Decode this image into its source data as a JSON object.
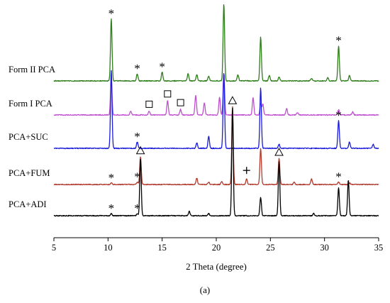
{
  "chart_data": {
    "type": "line",
    "title": "",
    "subfigure_label": "(a)",
    "xlabel": "2 Theta (degree)",
    "ylabel": "",
    "xlim": [
      5,
      35
    ],
    "xticks": [
      5,
      10,
      15,
      20,
      25,
      30,
      35
    ],
    "xtick_labels": [
      "5",
      "10",
      "15",
      "20",
      "25",
      "30",
      "35"
    ],
    "grid": false,
    "legend": "inline-left",
    "series": [
      {
        "name": "Form II PCA",
        "color": "#2e7d1a",
        "peaks": [
          [
            10.3,
            0.78
          ],
          [
            12.7,
            0.09
          ],
          [
            15.0,
            0.11
          ],
          [
            17.4,
            0.09
          ],
          [
            18.2,
            0.08
          ],
          [
            19.3,
            0.06
          ],
          [
            20.7,
            0.97
          ],
          [
            22.0,
            0.08
          ],
          [
            24.1,
            0.55
          ],
          [
            24.9,
            0.07
          ],
          [
            25.8,
            0.05
          ],
          [
            28.8,
            0.03
          ],
          [
            30.3,
            0.04
          ],
          [
            31.3,
            0.44
          ],
          [
            32.3,
            0.07
          ]
        ],
        "markers": [
          {
            "x": 10.3,
            "symbol": "*"
          },
          {
            "x": 12.7,
            "symbol": "*"
          },
          {
            "x": 15.0,
            "symbol": "*"
          },
          {
            "x": 31.3,
            "symbol": "*"
          }
        ]
      },
      {
        "name": "Form I PCA",
        "color": "#c04fd0",
        "peaks": [
          [
            10.3,
            0.45
          ],
          [
            12.1,
            0.05
          ],
          [
            13.8,
            0.05
          ],
          [
            15.5,
            0.18
          ],
          [
            16.7,
            0.07
          ],
          [
            18.1,
            0.25
          ],
          [
            18.9,
            0.15
          ],
          [
            20.3,
            0.22
          ],
          [
            20.7,
            0.52
          ],
          [
            23.4,
            0.22
          ],
          [
            24.1,
            0.15
          ],
          [
            24.3,
            0.14
          ],
          [
            26.5,
            0.08
          ],
          [
            27.5,
            0.03
          ],
          [
            31.3,
            0.07
          ],
          [
            32.6,
            0.04
          ]
        ],
        "markers": [
          {
            "x": 13.8,
            "symbol": "□"
          },
          {
            "x": 15.5,
            "symbol": "□"
          },
          {
            "x": 16.7,
            "symbol": "□"
          }
        ]
      },
      {
        "name": "PCA+SUC",
        "color": "#1a1adc",
        "peaks": [
          [
            10.3,
            0.98
          ],
          [
            12.7,
            0.08
          ],
          [
            18.2,
            0.07
          ],
          [
            19.3,
            0.15
          ],
          [
            20.7,
            0.96
          ],
          [
            24.1,
            0.76
          ],
          [
            25.8,
            0.05
          ],
          [
            31.3,
            0.35
          ],
          [
            32.3,
            0.08
          ],
          [
            34.5,
            0.05
          ]
        ],
        "markers": [
          {
            "x": 12.7,
            "symbol": "*"
          },
          {
            "x": 31.3,
            "symbol": "*"
          }
        ]
      },
      {
        "name": "PCA+FUM",
        "color": "#b03a2e",
        "peaks": [
          [
            10.3,
            0.02
          ],
          [
            12.7,
            0.03
          ],
          [
            13.0,
            0.35
          ],
          [
            18.2,
            0.08
          ],
          [
            19.3,
            0.03
          ],
          [
            20.5,
            0.04
          ],
          [
            21.5,
            0.98
          ],
          [
            22.8,
            0.07
          ],
          [
            24.1,
            0.45
          ],
          [
            25.8,
            0.33
          ],
          [
            27.2,
            0.03
          ],
          [
            28.8,
            0.07
          ],
          [
            31.3,
            0.03
          ],
          [
            32.3,
            0.02
          ]
        ],
        "markers": [
          {
            "x": 10.3,
            "symbol": "*"
          },
          {
            "x": 12.7,
            "symbol": "*"
          },
          {
            "x": 13.0,
            "symbol": "△"
          },
          {
            "x": 21.5,
            "symbol": "△"
          },
          {
            "x": 22.8,
            "symbol": "+"
          },
          {
            "x": 25.8,
            "symbol": "△"
          },
          {
            "x": 31.3,
            "symbol": "*"
          }
        ]
      },
      {
        "name": "PCA+ADI",
        "color": "#000000",
        "peaks": [
          [
            10.3,
            0.02
          ],
          [
            12.7,
            0.02
          ],
          [
            13.0,
            0.53
          ],
          [
            17.5,
            0.04
          ],
          [
            19.3,
            0.02
          ],
          [
            21.5,
            1.0
          ],
          [
            24.1,
            0.17
          ],
          [
            25.8,
            0.5
          ],
          [
            29.0,
            0.02
          ],
          [
            31.3,
            0.26
          ],
          [
            32.2,
            0.33
          ]
        ],
        "markers": [
          {
            "x": 10.3,
            "symbol": "*"
          },
          {
            "x": 12.7,
            "symbol": "*"
          }
        ]
      }
    ]
  }
}
